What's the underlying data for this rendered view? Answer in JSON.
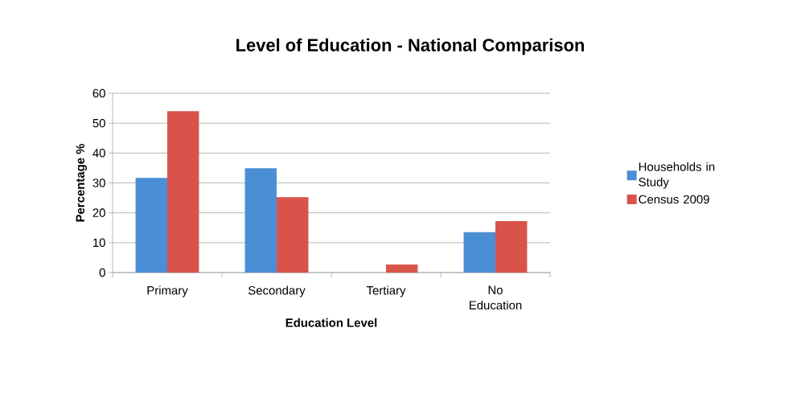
{
  "chart_data": {
    "type": "bar",
    "title": "Level of Education - National Comparison",
    "xlabel": "Education Level",
    "ylabel": "Percentage %",
    "categories": [
      "Primary",
      "Secondary",
      "Tertiary",
      "No Education"
    ],
    "series": [
      {
        "name": "Households in Study",
        "color": "#4a8fd6",
        "values": [
          31.7,
          34.9,
          0,
          13.5
        ]
      },
      {
        "name": "Census 2009",
        "color": "#d9534a",
        "values": [
          54.0,
          25.2,
          2.7,
          17.2
        ]
      }
    ],
    "ylim": [
      0,
      60
    ],
    "yticks": [
      0,
      10,
      20,
      30,
      40,
      50,
      60
    ],
    "grid": "y",
    "legend": "right"
  }
}
